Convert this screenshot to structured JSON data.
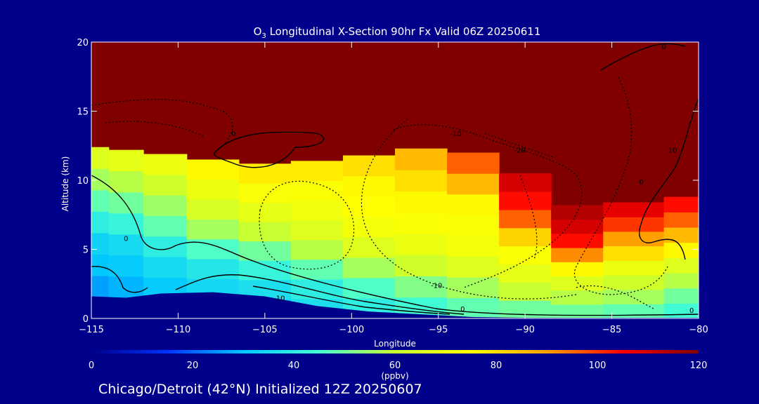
{
  "chart_data": {
    "type": "heatmap",
    "title": {
      "species": "O",
      "species_sub": "3",
      "rest": " Longitudinal X-Section 90hr  Fx Valid 06Z 20250611"
    },
    "xlabel": "Longitude",
    "ylabel": "Altitude (km)",
    "xlim": [
      -115,
      -80
    ],
    "ylim": [
      0,
      20
    ],
    "x_ticks": [
      -115,
      -110,
      -105,
      -100,
      -95,
      -90,
      -85,
      -80
    ],
    "y_ticks": [
      0,
      5,
      10,
      15,
      20
    ],
    "colorbar": {
      "range": [
        0,
        120
      ],
      "ticks": [
        0,
        20,
        40,
        60,
        80,
        100,
        120
      ],
      "unit": "(ppbv)",
      "colors": [
        "#00008b",
        "#0032ff",
        "#00c8ff",
        "#46ffd2",
        "#c8ff32",
        "#ffff00",
        "#ffa000",
        "#ff0000",
        "#800000"
      ]
    },
    "columns": [
      {
        "lon": -115.0,
        "ground": 1.6,
        "top": 12.4,
        "values": [
          24,
          26,
          30,
          33,
          40,
          48,
          56,
          66
        ]
      },
      {
        "lon": -113.0,
        "ground": 1.5,
        "top": 12.2,
        "values": [
          26,
          28,
          31,
          35,
          42,
          50,
          58,
          68
        ]
      },
      {
        "lon": -111.0,
        "ground": 1.8,
        "top": 11.9,
        "values": [
          28,
          31,
          35,
          40,
          48,
          55,
          62,
          70
        ]
      },
      {
        "lon": -108.0,
        "ground": 1.9,
        "top": 11.5,
        "values": [
          30,
          34,
          38,
          46,
          56,
          64,
          70,
          76
        ]
      },
      {
        "lon": -105.0,
        "ground": 1.6,
        "top": 11.2,
        "values": [
          32,
          36,
          42,
          50,
          60,
          68,
          73,
          78
        ]
      },
      {
        "lon": -102.0,
        "ground": 0.9,
        "top": 11.4,
        "values": [
          36,
          40,
          48,
          58,
          66,
          71,
          74,
          78
        ]
      },
      {
        "lon": -99.0,
        "ground": 0.5,
        "top": 11.8,
        "values": [
          40,
          46,
          56,
          66,
          72,
          75,
          76,
          80
        ]
      },
      {
        "lon": -96.0,
        "ground": 0.3,
        "top": 12.3,
        "values": [
          44,
          52,
          62,
          70,
          74,
          76,
          80,
          86
        ]
      },
      {
        "lon": -93.0,
        "ground": 0.1,
        "top": 12.0,
        "values": [
          48,
          56,
          66,
          72,
          74,
          76,
          86,
          96
        ]
      },
      {
        "lon": -90.0,
        "ground": 0.05,
        "top": 10.5,
        "values": [
          50,
          60,
          68,
          74,
          82,
          96,
          104,
          110
        ]
      },
      {
        "lon": -87.0,
        "ground": 0.05,
        "top": 8.2,
        "values": [
          50,
          58,
          66,
          76,
          92,
          104,
          110,
          114
        ]
      },
      {
        "lon": -84.0,
        "ground": 0.05,
        "top": 8.4,
        "values": [
          48,
          56,
          62,
          70,
          80,
          90,
          100,
          108
        ]
      },
      {
        "lon": -80.0,
        "ground": 0.05,
        "top": 8.8,
        "values": [
          44,
          50,
          58,
          66,
          76,
          86,
          96,
          104
        ]
      }
    ],
    "contour_labels": [
      {
        "text": "0",
        "lon": -106.8,
        "alt": 13.2
      },
      {
        "text": "0",
        "lon": -113.0,
        "alt": 5.6
      },
      {
        "text": "-10",
        "lon": -94.0,
        "alt": 13.2
      },
      {
        "text": "-20",
        "lon": -90.3,
        "alt": 12.0
      },
      {
        "text": "10",
        "lon": -81.5,
        "alt": 12.0
      },
      {
        "text": "0",
        "lon": -83.3,
        "alt": 9.7
      },
      {
        "text": "-10",
        "lon": -95.1,
        "alt": 2.2
      },
      {
        "text": "0",
        "lon": -93.6,
        "alt": 0.5
      },
      {
        "text": "10",
        "lon": -104.1,
        "alt": 1.3
      },
      {
        "text": "0",
        "lon": -80.4,
        "alt": 0.4
      },
      {
        "text": "0",
        "lon": -82.0,
        "alt": 19.5
      }
    ]
  },
  "footer": "Chicago/Detroit (42°N) Initialized 12Z 20250607"
}
